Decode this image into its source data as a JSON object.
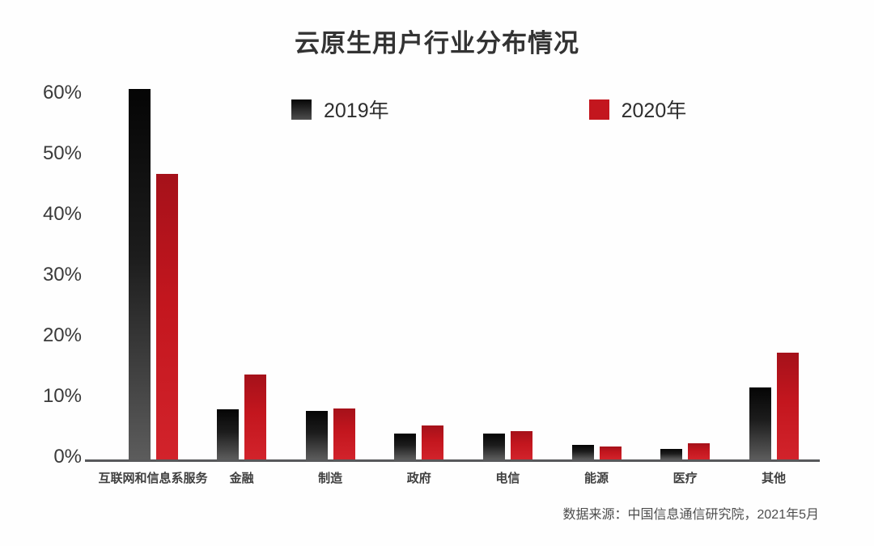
{
  "title": "云原生用户行业分布情况",
  "source_note": "数据来源：中国信息通信研究院，2021年5月",
  "legend": {
    "items": [
      {
        "label": "2019年",
        "color": "#1a1a1a"
      },
      {
        "label": "2020年",
        "color": "#c3161e"
      }
    ],
    "position": "top-center"
  },
  "chart_data": {
    "type": "bar",
    "title": "云原生用户行业分布情况",
    "categories": [
      "互联网和信息系服务",
      "金融",
      "制造",
      "政府",
      "电信",
      "能源",
      "医疗",
      "其他"
    ],
    "series": [
      {
        "name": "2019年",
        "color": "#1a1a1a",
        "values": [
          61,
          8.3,
          8,
          4.3,
          4.2,
          2.4,
          1.7,
          11.8
        ]
      },
      {
        "name": "2020年",
        "color": "#c3161e",
        "values": [
          47,
          14,
          8.4,
          5.6,
          4.6,
          2.1,
          2.7,
          17.6
        ]
      }
    ],
    "xlabel": "",
    "ylabel": "",
    "ylim": [
      0,
      60
    ],
    "y_tick_values": [
      0,
      10,
      20,
      30,
      40,
      50,
      60
    ],
    "y_tick_labels": [
      "0%",
      "10%",
      "20%",
      "30%",
      "40%",
      "50%",
      "60%"
    ],
    "unit": "%",
    "grid": false,
    "legend_position": "top-center"
  }
}
